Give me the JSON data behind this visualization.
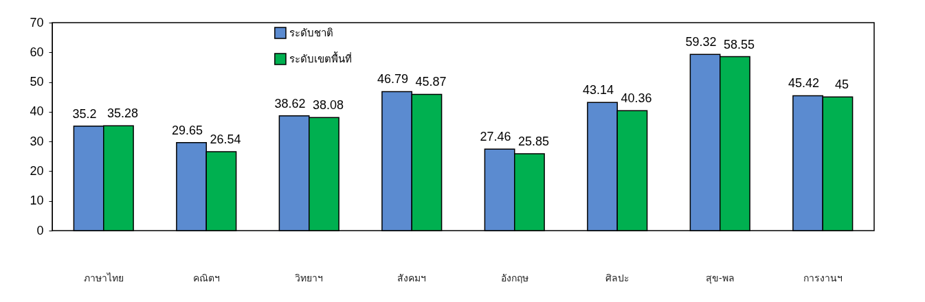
{
  "chart_data": {
    "type": "bar",
    "categories": [
      "ภาษาไทย",
      "คณิตฯ",
      "วิทยาฯ",
      "สังคมฯ",
      "อังกฤษ",
      "ศิลปะ",
      "สุข-พล",
      "การงานฯ"
    ],
    "series": [
      {
        "name": "ระดับชาติ",
        "color": "#5b8bd0",
        "values": [
          35.2,
          29.65,
          38.62,
          46.79,
          27.46,
          43.14,
          59.32,
          45.42
        ]
      },
      {
        "name": "ระดับเขตพื้นที่",
        "color": "#00b050",
        "values": [
          35.28,
          26.54,
          38.08,
          45.87,
          25.85,
          40.36,
          58.55,
          45
        ]
      }
    ],
    "ylim": [
      0,
      70
    ],
    "yticks": [
      0,
      10,
      20,
      30,
      40,
      50,
      60,
      70
    ],
    "grid": false,
    "legend": "top left",
    "data_labels": true
  }
}
